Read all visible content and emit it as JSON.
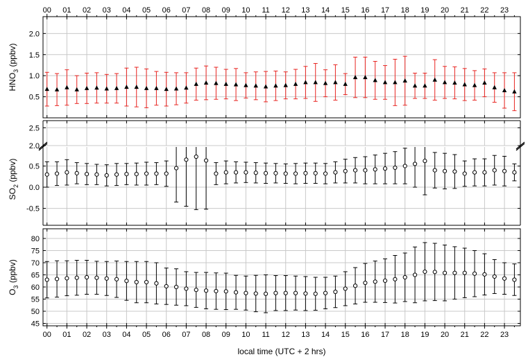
{
  "chart_data": [
    {
      "type": "scatter",
      "panel": "HNO3",
      "ylabel_main": "HNO",
      "ylabel_sub": "3",
      "ylabel_tail": " (ppbv)",
      "ylim": [
        0,
        2.4
      ],
      "yticks": [
        0.5,
        1.0,
        1.5,
        2.0
      ],
      "ytick_labels": [
        "0.5",
        "1.0",
        "1.5",
        "2.0"
      ],
      "marker": "filled-triangle",
      "marker_color": "#000000",
      "errorbar_color": "#e8231f",
      "series": [
        {
          "x": [
            0.0,
            0.5,
            1.0,
            1.5,
            2.0,
            2.5,
            3.0,
            3.5,
            4.0,
            4.5,
            5.0,
            5.5,
            6.0,
            6.5,
            7.0,
            7.5,
            8.0,
            8.5,
            9.0,
            9.5,
            10.0,
            10.5,
            11.0,
            11.5,
            12.0,
            12.5,
            13.0,
            13.5,
            14.0,
            14.5,
            15.0,
            15.5,
            16.0,
            16.5,
            17.0,
            17.5,
            18.0,
            18.5,
            19.0,
            19.5,
            20.0,
            20.5,
            21.0,
            21.5,
            22.0,
            22.5,
            23.0,
            23.5
          ],
          "y": [
            0.68,
            0.67,
            0.72,
            0.67,
            0.7,
            0.71,
            0.69,
            0.7,
            0.73,
            0.73,
            0.7,
            0.7,
            0.68,
            0.69,
            0.71,
            0.8,
            0.83,
            0.82,
            0.8,
            0.79,
            0.77,
            0.76,
            0.74,
            0.76,
            0.77,
            0.8,
            0.84,
            0.84,
            0.82,
            0.84,
            0.8,
            0.96,
            0.96,
            0.89,
            0.84,
            0.84,
            0.88,
            0.76,
            0.76,
            0.9,
            0.84,
            0.83,
            0.79,
            0.77,
            0.83,
            0.72,
            0.65,
            0.62
          ],
          "err": [
            0.4,
            0.38,
            0.42,
            0.33,
            0.36,
            0.36,
            0.34,
            0.35,
            0.45,
            0.47,
            0.46,
            0.4,
            0.4,
            0.38,
            0.36,
            0.38,
            0.4,
            0.38,
            0.35,
            0.38,
            0.3,
            0.33,
            0.36,
            0.35,
            0.32,
            0.35,
            0.38,
            0.45,
            0.32,
            0.42,
            0.25,
            0.48,
            0.48,
            0.45,
            0.4,
            0.55,
            0.58,
            0.3,
            0.3,
            0.48,
            0.38,
            0.38,
            0.38,
            0.35,
            0.33,
            0.35,
            0.42,
            0.45
          ]
        }
      ]
    },
    {
      "type": "scatter",
      "panel": "SO2",
      "ylabel_main": "SO",
      "ylabel_sub": "2",
      "ylabel_tail": " (ppbv)",
      "axis_break": true,
      "ylim_lower": [
        -0.9,
        0.95
      ],
      "ylim_upper": [
        2.0,
        2.7
      ],
      "yticks_lower": [
        -0.5,
        0.0,
        0.5
      ],
      "ytick_labels_lower": [
        "-0.5",
        "0.0",
        "0.5"
      ],
      "yticks_upper": [
        2.0,
        2.5
      ],
      "ytick_labels_upper": [
        "2.0",
        "2.5"
      ],
      "marker": "open-circle",
      "marker_color": "#000000",
      "errorbar_color": "#000000",
      "series": [
        {
          "x": [
            0.0,
            0.5,
            1.0,
            1.5,
            2.0,
            2.5,
            3.0,
            3.5,
            4.0,
            4.5,
            5.0,
            5.5,
            6.0,
            6.5,
            7.0,
            7.5,
            8.0,
            8.5,
            9.0,
            9.5,
            10.0,
            10.5,
            11.0,
            11.5,
            12.0,
            12.5,
            13.0,
            13.5,
            14.0,
            14.5,
            15.0,
            15.5,
            16.0,
            16.5,
            17.0,
            17.5,
            18.0,
            18.5,
            19.0,
            19.5,
            20.0,
            20.5,
            21.0,
            21.5,
            22.0,
            22.5,
            23.0,
            23.5
          ],
          "y": [
            0.3,
            0.32,
            0.35,
            0.33,
            0.31,
            0.3,
            0.28,
            0.3,
            0.31,
            0.31,
            0.32,
            0.32,
            0.32,
            0.45,
            0.65,
            0.72,
            0.63,
            0.32,
            0.35,
            0.35,
            0.35,
            0.34,
            0.33,
            0.33,
            0.32,
            0.32,
            0.33,
            0.33,
            0.32,
            0.35,
            0.38,
            0.4,
            0.4,
            0.42,
            0.44,
            0.46,
            0.5,
            0.55,
            0.62,
            0.4,
            0.38,
            0.37,
            0.32,
            0.35,
            0.35,
            0.4,
            0.38,
            0.35
          ],
          "err": [
            0.3,
            0.28,
            0.3,
            0.25,
            0.25,
            0.24,
            0.25,
            0.26,
            0.25,
            0.26,
            0.27,
            0.26,
            0.3,
            0.8,
            1.1,
            1.25,
            1.15,
            0.26,
            0.27,
            0.25,
            0.24,
            0.24,
            0.24,
            0.23,
            0.23,
            0.24,
            0.24,
            0.24,
            0.24,
            0.25,
            0.28,
            0.3,
            0.32,
            0.34,
            0.36,
            0.38,
            0.42,
            0.55,
            0.8,
            0.42,
            0.42,
            0.4,
            0.3,
            0.32,
            0.32,
            0.35,
            0.35,
            0.2
          ]
        }
      ]
    },
    {
      "type": "scatter",
      "panel": "O3",
      "ylabel_main": "O",
      "ylabel_sub": "3",
      "ylabel_tail": " (ppbv)",
      "ylim": [
        44,
        84
      ],
      "yticks": [
        45,
        50,
        55,
        60,
        65,
        70,
        75,
        80
      ],
      "ytick_labels": [
        "45",
        "50",
        "55",
        "60",
        "65",
        "70",
        "75",
        "80"
      ],
      "marker": "open-circle",
      "marker_color": "#000000",
      "errorbar_color": "#000000",
      "series": [
        {
          "x": [
            0.0,
            0.5,
            1.0,
            1.5,
            2.0,
            2.5,
            3.0,
            3.5,
            4.0,
            4.5,
            5.0,
            5.5,
            6.0,
            6.5,
            7.0,
            7.5,
            8.0,
            8.5,
            9.0,
            9.5,
            10.0,
            10.5,
            11.0,
            11.5,
            12.0,
            12.5,
            13.0,
            13.5,
            14.0,
            14.5,
            15.0,
            15.5,
            16.0,
            16.5,
            17.0,
            17.5,
            18.0,
            18.5,
            19.0,
            19.5,
            20.0,
            20.5,
            21.0,
            21.5,
            22.0,
            22.5,
            23.0,
            23.5
          ],
          "y": [
            63.0,
            63.3,
            63.6,
            63.8,
            64.0,
            63.8,
            63.5,
            63.2,
            62.5,
            62.0,
            62.0,
            61.5,
            60.3,
            60.0,
            59.3,
            58.8,
            58.5,
            58.3,
            58.2,
            57.8,
            57.5,
            57.3,
            57.2,
            57.5,
            57.5,
            57.5,
            57.3,
            57.2,
            57.5,
            58.0,
            59.3,
            60.5,
            61.7,
            62.2,
            62.6,
            63.2,
            64.0,
            65.0,
            66.3,
            66.2,
            65.8,
            65.8,
            65.8,
            65.5,
            65.2,
            64.3,
            63.5,
            63.0
          ],
          "err": [
            7.5,
            7.5,
            7.2,
            7.2,
            7.0,
            6.8,
            7.0,
            7.5,
            8.0,
            8.5,
            8.5,
            8.5,
            7.5,
            7.5,
            7.0,
            7.2,
            7.5,
            7.5,
            7.5,
            7.0,
            7.0,
            7.5,
            7.8,
            7.2,
            7.2,
            7.0,
            7.0,
            6.8,
            6.5,
            6.5,
            7.0,
            7.5,
            8.0,
            8.5,
            9.0,
            9.8,
            10.0,
            11.5,
            12.0,
            11.8,
            11.5,
            10.8,
            10.2,
            9.5,
            8.5,
            7.0,
            6.5,
            6.5
          ]
        }
      ]
    }
  ],
  "x_axis": {
    "xlim": [
      -0.2,
      23.8
    ],
    "ticks": [
      0,
      1,
      2,
      3,
      4,
      5,
      6,
      7,
      8,
      9,
      10,
      11,
      12,
      13,
      14,
      15,
      16,
      17,
      18,
      19,
      20,
      21,
      22,
      23
    ],
    "tick_labels": [
      "00",
      "01",
      "02",
      "03",
      "04",
      "05",
      "06",
      "07",
      "08",
      "09",
      "10",
      "11",
      "12",
      "13",
      "14",
      "15",
      "16",
      "17",
      "18",
      "19",
      "20",
      "21",
      "22",
      "23"
    ],
    "xlabel": "local time (UTC + 2 hrs)",
    "grid": true
  }
}
